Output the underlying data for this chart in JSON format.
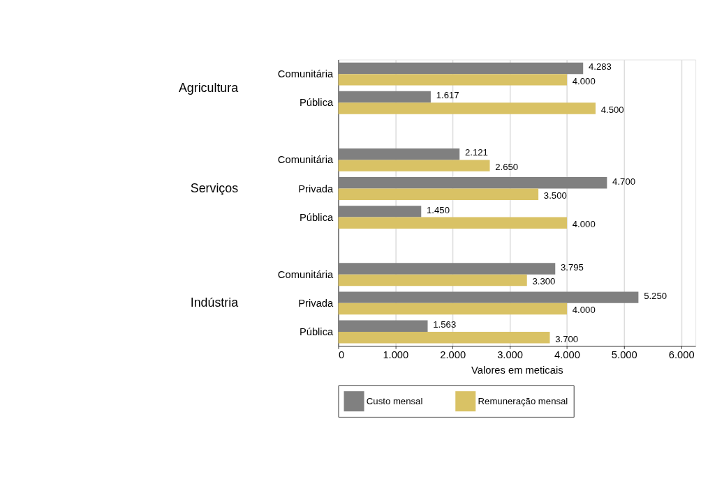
{
  "chart_data": {
    "type": "bar",
    "orientation": "horizontal",
    "categories": [
      "Comunitária",
      "Pública",
      null,
      "Comunitária",
      "Privada",
      "Pública",
      null,
      "Comunitária",
      "Privada",
      "Pública"
    ],
    "series": [
      {
        "name": "Custo mensal",
        "color": "#808080",
        "values": [
          4283,
          1617,
          null,
          2121,
          4700,
          1450,
          null,
          3795,
          5250,
          1563
        ],
        "value_labels": [
          "4.283",
          "1.617",
          null,
          "2.121",
          "4.700",
          "1.450",
          null,
          "3.795",
          "5.250",
          "1.563"
        ]
      },
      {
        "name": "Remuneração mensal",
        "color": "#d9c265",
        "values": [
          4000,
          4500,
          null,
          2650,
          3500,
          4000,
          null,
          3300,
          4000,
          3700
        ],
        "value_labels": [
          "4.000",
          "4.500",
          null,
          "2.650",
          "3.500",
          "4.000",
          null,
          "3.300",
          "4.000",
          "3.700"
        ]
      }
    ],
    "annotations": [
      "Agricultura",
      "Serviços",
      "Indústria"
    ],
    "xlabel": "Valores em meticais",
    "xlim": [
      0,
      6250
    ],
    "xticks": [
      {
        "value": 0,
        "label": "0"
      },
      {
        "value": 1000,
        "label": "1.000"
      },
      {
        "value": 2000,
        "label": "2.000"
      },
      {
        "value": 3000,
        "label": "3.000"
      },
      {
        "value": 4000,
        "label": "4.000"
      },
      {
        "value": 5000,
        "label": "5.000"
      },
      {
        "value": 6000,
        "label": "6.000"
      }
    ],
    "grid": "x",
    "legend": "bottom"
  }
}
